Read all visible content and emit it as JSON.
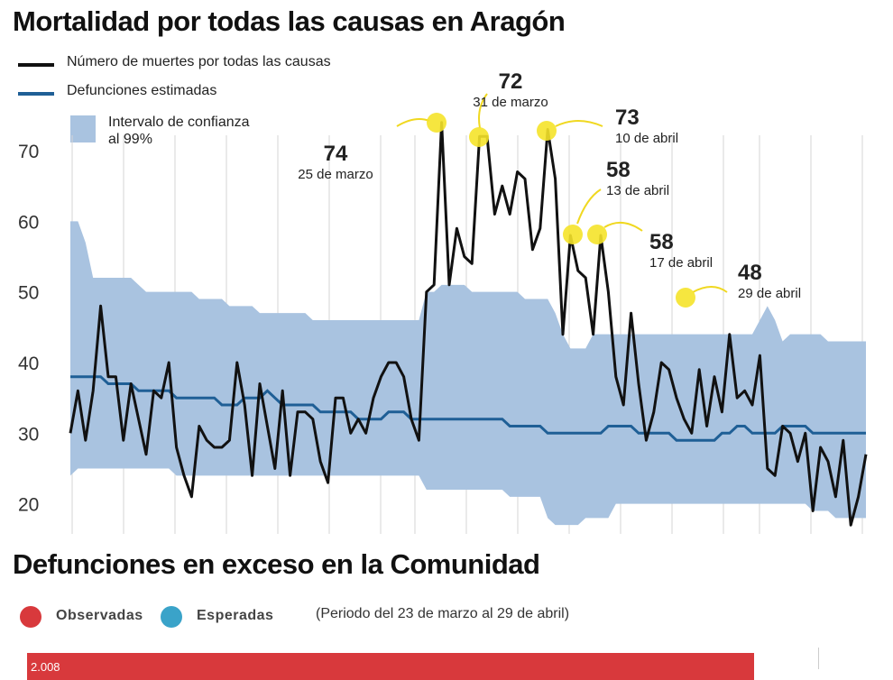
{
  "title": "Mortalidad por todas las causas en Aragón",
  "legend": {
    "observed": "Número de muertes por todas las causas",
    "estimated": "Defunciones estimadas",
    "ci": "Intervalo de confianza al 99%"
  },
  "colors": {
    "observed": "#111111",
    "estimated": "#1f5f96",
    "ci": "#a9c3e0",
    "highlight": "#f5e32a",
    "excess_observed": "#d8393c",
    "excess_expected": "#3aa3c9"
  },
  "chart_data": {
    "type": "line",
    "ylim": [
      16,
      76
    ],
    "yticks": [
      "20",
      "30",
      "40",
      "50",
      "60",
      "70"
    ],
    "series": [
      {
        "name": "Número de muertes por todas las causas",
        "values": [
          30,
          36,
          29,
          36,
          48,
          38,
          38,
          29,
          37,
          32,
          27,
          36,
          35,
          40,
          28,
          24,
          21,
          31,
          29,
          28,
          28,
          29,
          40,
          34,
          24,
          37,
          31,
          25,
          36,
          24,
          33,
          33,
          32,
          26,
          23,
          35,
          35,
          30,
          32,
          30,
          35,
          38,
          40,
          40,
          38,
          32,
          29,
          50,
          51,
          74,
          51,
          59,
          55,
          54,
          72,
          72,
          61,
          65,
          61,
          67,
          66,
          56,
          59,
          73,
          66,
          44,
          58,
          53,
          52,
          44,
          58,
          50,
          38,
          34,
          47,
          37,
          29,
          33,
          40,
          39,
          35,
          32,
          30,
          39,
          31,
          38,
          33,
          44,
          35,
          36,
          34,
          41,
          25,
          24,
          31,
          30,
          26,
          30,
          19,
          28,
          26,
          21,
          29,
          17,
          21,
          27
        ]
      },
      {
        "name": "Defunciones estimadas",
        "values": [
          38,
          38,
          38,
          38,
          38,
          37,
          37,
          37,
          37,
          36,
          36,
          36,
          36,
          36,
          35,
          35,
          35,
          35,
          35,
          35,
          34,
          34,
          34,
          35,
          35,
          35,
          36,
          35,
          34,
          34,
          34,
          34,
          34,
          33,
          33,
          33,
          33,
          33,
          32,
          32,
          32,
          32,
          33,
          33,
          33,
          32,
          32,
          32,
          32,
          32,
          32,
          32,
          32,
          32,
          32,
          32,
          32,
          32,
          31,
          31,
          31,
          31,
          31,
          30,
          30,
          30,
          30,
          30,
          30,
          30,
          30,
          31,
          31,
          31,
          31,
          30,
          30,
          30,
          30,
          30,
          29,
          29,
          29,
          29,
          29,
          29,
          30,
          30,
          31,
          31,
          30,
          30,
          30,
          30,
          31,
          31,
          31,
          31,
          30,
          30,
          30,
          30,
          30,
          30,
          30,
          30
        ]
      },
      {
        "name": "Intervalo de confianza al 99%",
        "upper": [
          60,
          60,
          57,
          52,
          52,
          52,
          52,
          52,
          52,
          51,
          50,
          50,
          50,
          50,
          50,
          50,
          50,
          49,
          49,
          49,
          49,
          48,
          48,
          48,
          48,
          47,
          47,
          47,
          47,
          47,
          47,
          47,
          46,
          46,
          46,
          46,
          46,
          46,
          46,
          46,
          46,
          46,
          46,
          46,
          46,
          46,
          46,
          50,
          50,
          51,
          51,
          51,
          51,
          50,
          50,
          50,
          50,
          50,
          50,
          50,
          49,
          49,
          49,
          49,
          47,
          44,
          42,
          42,
          42,
          44,
          44,
          44,
          44,
          44,
          44,
          44,
          44,
          44,
          44,
          44,
          44,
          44,
          44,
          44,
          44,
          44,
          44,
          44,
          44,
          44,
          44,
          46,
          48,
          46,
          43,
          44,
          44,
          44,
          44,
          44,
          43,
          43,
          43,
          43,
          43,
          43
        ],
        "lower": [
          24,
          25,
          25,
          25,
          25,
          25,
          25,
          25,
          25,
          25,
          25,
          25,
          25,
          25,
          24,
          24,
          24,
          24,
          24,
          24,
          24,
          24,
          24,
          24,
          24,
          24,
          24,
          24,
          24,
          24,
          24,
          24,
          24,
          24,
          24,
          24,
          24,
          24,
          24,
          24,
          24,
          24,
          24,
          24,
          24,
          24,
          24,
          22,
          22,
          22,
          22,
          22,
          22,
          22,
          22,
          22,
          22,
          22,
          21,
          21,
          21,
          21,
          21,
          18,
          17,
          17,
          17,
          17,
          18,
          18,
          18,
          18,
          20,
          20,
          20,
          20,
          20,
          20,
          20,
          20,
          20,
          20,
          20,
          20,
          20,
          20,
          20,
          20,
          20,
          20,
          20,
          20,
          20,
          20,
          20,
          20,
          20,
          20,
          19,
          19,
          19,
          18,
          18,
          18,
          18,
          18
        ]
      }
    ]
  },
  "annotations": [
    {
      "value": "74",
      "date": "25 de marzo"
    },
    {
      "value": "72",
      "date": "31 de marzo"
    },
    {
      "value": "73",
      "date": "10 de abril"
    },
    {
      "value": "58",
      "date": "13 de abril"
    },
    {
      "value": "58",
      "date": "17 de abril"
    },
    {
      "value": "48",
      "date": "29 de abril"
    }
  ],
  "excess": {
    "title": "Defunciones en exceso en la Comunidad",
    "observed_label": "Observadas",
    "expected_label": "Esperadas",
    "period": "(Periodo del 23 de marzo al 29 de abril)",
    "observed_value": "2.008"
  }
}
